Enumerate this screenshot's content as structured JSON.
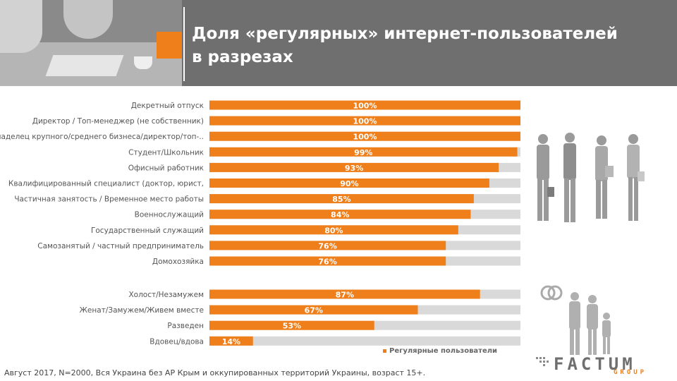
{
  "header": {
    "title_line1": "Доля «регулярных» интернет-пользователей",
    "title_line2": "в разрезах"
  },
  "colors": {
    "accent": "#ef7f1a",
    "track": "#d9d9d9",
    "header_bg": "#6f6f6f",
    "label_text": "#555555"
  },
  "chart_data": {
    "type": "bar",
    "orientation": "horizontal",
    "xlim": [
      0,
      100
    ],
    "value_suffix": "%",
    "legend": "Регулярные пользователи",
    "legend_position": "bottom-right",
    "groups": [
      {
        "categories": [
          "Декретный отпуск",
          "Директор / Топ-менеджер (не собственник)",
          "Владелец крупного/среднего бизнеса/директор/топ-..",
          "Студент/Школьник",
          "Офисный работник",
          "Квалифицированный специалист (доктор, юрист,",
          "Частичная занятость / Временное место работы",
          "Военнослужащий",
          "Государственный служащий",
          "Самозанятый / частный предприниматель",
          "Домохозяйка"
        ],
        "values": [
          100,
          100,
          100,
          99,
          93,
          90,
          85,
          84,
          80,
          76,
          76
        ]
      },
      {
        "categories": [
          "Холост/Незамужем",
          "Женат/Замужем/Живем вместе",
          "Разведен",
          "Вдовец/вдова"
        ],
        "values": [
          87,
          67,
          53,
          14
        ]
      }
    ]
  },
  "footnote": "Август 2017, N=2000, Вся Украина без АР Крым и оккупированных территорий Украины, возраст 15+.",
  "logo": {
    "brand": "FACTUM",
    "sub": "GROUP"
  },
  "icons": {
    "people": "business-people-icon",
    "family": "family-icon",
    "rings": "wedding-rings-icon"
  }
}
